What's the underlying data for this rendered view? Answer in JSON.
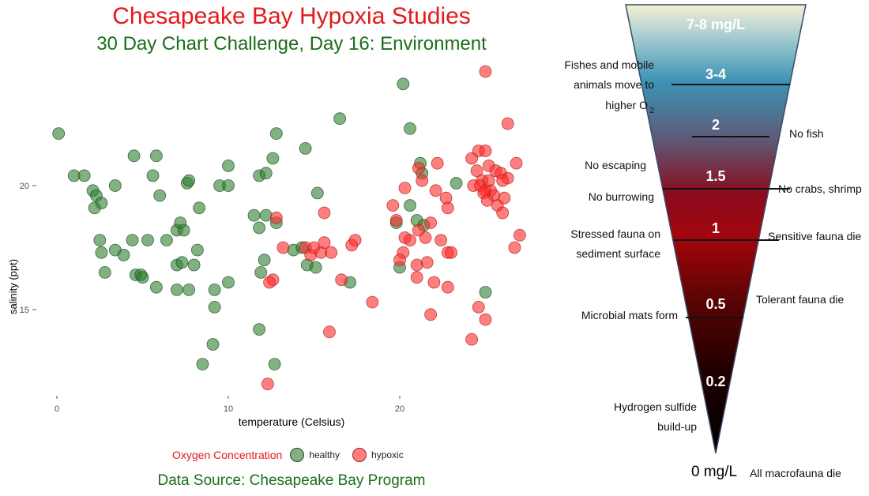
{
  "header": {
    "title": "Chesapeake Bay Hypoxia Studies",
    "subtitle": "30 Day Chart Challenge, Day 16: Environment"
  },
  "footer": {
    "source": "Data Source: Chesapeake Bay Program"
  },
  "colors": {
    "title": "#e31a1c",
    "subtitle": "#1a6e1a",
    "healthy": "#2e7d32",
    "hypoxic": "#ff2a2a"
  },
  "chart_data": {
    "type": "scatter",
    "xlabel": "temperature (Celsius)",
    "ylabel": "salinity (ppt)",
    "xlim": [
      0,
      27.5
    ],
    "ylim": [
      11.5,
      26
    ],
    "xticks": [
      0,
      10,
      20
    ],
    "yticks": [
      15,
      20
    ],
    "grid": false,
    "legend": {
      "title": "Oxygen Concentration",
      "position": "bottom"
    },
    "series": [
      {
        "name": "healthy",
        "color": "#2e7d32",
        "points": [
          [
            0.1,
            22.1
          ],
          [
            1.0,
            20.4
          ],
          [
            1.6,
            20.4
          ],
          [
            2.1,
            19.8
          ],
          [
            2.3,
            19.6
          ],
          [
            2.6,
            19.3
          ],
          [
            2.2,
            19.1
          ],
          [
            3.4,
            20.0
          ],
          [
            2.5,
            17.8
          ],
          [
            2.6,
            17.3
          ],
          [
            2.8,
            16.5
          ],
          [
            3.4,
            17.4
          ],
          [
            3.9,
            17.2
          ],
          [
            4.4,
            17.8
          ],
          [
            4.6,
            16.4
          ],
          [
            4.9,
            16.4
          ],
          [
            5.0,
            16.3
          ],
          [
            5.3,
            17.8
          ],
          [
            5.6,
            20.4
          ],
          [
            5.8,
            21.2
          ],
          [
            5.8,
            15.9
          ],
          [
            4.5,
            21.2
          ],
          [
            6.0,
            19.6
          ],
          [
            6.4,
            17.8
          ],
          [
            7.0,
            18.2
          ],
          [
            7.2,
            18.5
          ],
          [
            7.4,
            18.2
          ],
          [
            7.6,
            20.1
          ],
          [
            7.7,
            20.2
          ],
          [
            7.0,
            16.8
          ],
          [
            7.3,
            16.9
          ],
          [
            7.0,
            15.8
          ],
          [
            7.7,
            15.8
          ],
          [
            8.0,
            16.8
          ],
          [
            8.3,
            19.1
          ],
          [
            8.5,
            12.8
          ],
          [
            8.2,
            17.4
          ],
          [
            9.2,
            15.8
          ],
          [
            9.2,
            15.1
          ],
          [
            9.5,
            20.0
          ],
          [
            10.0,
            20.0
          ],
          [
            10.0,
            16.1
          ],
          [
            10.0,
            20.8
          ],
          [
            9.1,
            13.6
          ],
          [
            11.5,
            18.8
          ],
          [
            11.8,
            18.3
          ],
          [
            12.2,
            18.8
          ],
          [
            11.8,
            14.2
          ],
          [
            11.9,
            16.5
          ],
          [
            12.1,
            17.0
          ],
          [
            11.8,
            20.4
          ],
          [
            12.2,
            20.5
          ],
          [
            12.6,
            21.1
          ],
          [
            12.8,
            22.1
          ],
          [
            12.8,
            18.5
          ],
          [
            12.7,
            12.8
          ],
          [
            13.8,
            17.4
          ],
          [
            14.3,
            17.5
          ],
          [
            14.5,
            21.5
          ],
          [
            14.6,
            16.8
          ],
          [
            15.2,
            19.7
          ],
          [
            15.1,
            16.7
          ],
          [
            16.5,
            22.7
          ],
          [
            17.1,
            16.1
          ],
          [
            20.2,
            24.1
          ],
          [
            20.6,
            22.3
          ],
          [
            20.6,
            19.2
          ],
          [
            19.8,
            18.5
          ],
          [
            20.0,
            16.7
          ],
          [
            21.0,
            18.6
          ],
          [
            21.2,
            20.9
          ],
          [
            21.3,
            20.5
          ],
          [
            21.4,
            18.4
          ],
          [
            23.3,
            20.1
          ],
          [
            25.0,
            15.7
          ]
        ]
      },
      {
        "name": "hypoxic",
        "color": "#ff2a2a",
        "points": [
          [
            25.0,
            24.6
          ],
          [
            26.3,
            22.5
          ],
          [
            24.2,
            21.1
          ],
          [
            24.6,
            21.4
          ],
          [
            25.0,
            21.4
          ],
          [
            24.5,
            20.6
          ],
          [
            24.8,
            20.2
          ],
          [
            25.2,
            20.8
          ],
          [
            25.6,
            20.6
          ],
          [
            25.9,
            20.5
          ],
          [
            24.3,
            20.0
          ],
          [
            24.7,
            20.0
          ],
          [
            25.0,
            19.8
          ],
          [
            25.3,
            19.8
          ],
          [
            25.5,
            19.6
          ],
          [
            25.2,
            20.2
          ],
          [
            24.9,
            19.7
          ],
          [
            25.1,
            19.4
          ],
          [
            25.7,
            19.2
          ],
          [
            26.0,
            18.9
          ],
          [
            26.1,
            19.5
          ],
          [
            26.3,
            20.3
          ],
          [
            26.0,
            20.2
          ],
          [
            26.8,
            20.9
          ],
          [
            27.0,
            18.0
          ],
          [
            26.7,
            17.5
          ],
          [
            24.6,
            15.1
          ],
          [
            25.0,
            14.6
          ],
          [
            24.2,
            13.8
          ],
          [
            22.8,
            19.1
          ],
          [
            22.7,
            19.5
          ],
          [
            22.1,
            19.8
          ],
          [
            22.2,
            20.9
          ],
          [
            21.3,
            20.2
          ],
          [
            21.1,
            20.7
          ],
          [
            21.1,
            18.2
          ],
          [
            21.5,
            17.9
          ],
          [
            21.8,
            18.5
          ],
          [
            22.4,
            17.8
          ],
          [
            22.8,
            17.3
          ],
          [
            23.0,
            17.3
          ],
          [
            20.3,
            17.9
          ],
          [
            20.6,
            17.8
          ],
          [
            20.2,
            17.3
          ],
          [
            20.0,
            17.0
          ],
          [
            21.0,
            16.8
          ],
          [
            21.6,
            16.9
          ],
          [
            22.0,
            16.1
          ],
          [
            22.8,
            15.9
          ],
          [
            21.0,
            16.3
          ],
          [
            20.3,
            19.9
          ],
          [
            19.6,
            19.2
          ],
          [
            19.8,
            18.6
          ],
          [
            18.4,
            15.3
          ],
          [
            21.8,
            14.8
          ],
          [
            17.2,
            17.6
          ],
          [
            17.4,
            17.8
          ],
          [
            16.0,
            17.3
          ],
          [
            15.9,
            14.1
          ],
          [
            14.5,
            17.5
          ],
          [
            14.8,
            17.2
          ],
          [
            15.0,
            17.5
          ],
          [
            15.4,
            17.3
          ],
          [
            15.6,
            17.7
          ],
          [
            15.6,
            18.9
          ],
          [
            13.2,
            17.5
          ],
          [
            12.6,
            16.2
          ],
          [
            12.4,
            16.1
          ],
          [
            12.8,
            18.7
          ],
          [
            12.3,
            12.0
          ],
          [
            16.6,
            16.2
          ]
        ]
      }
    ]
  },
  "diagram": {
    "levels": [
      "7-8 mg/L",
      "3-4",
      "2",
      "1.5",
      "1",
      "0.5",
      "0.2",
      "0 mg/L"
    ],
    "left_labels": {
      "fishes_line1": "Fishes and mobile",
      "fishes_line2": "animals move to",
      "fishes_line3": "higher O",
      "fishes_sub": "2",
      "no_escaping": "No escaping",
      "no_burrowing": "No burrowing",
      "stressed_line1": "Stressed fauna on",
      "stressed_line2": "sediment surface",
      "microbial": "Microbial mats form",
      "h2s_line1": "Hydrogen sulfide",
      "h2s_line2": "build-up"
    },
    "right_labels": {
      "no_fish": "No fish",
      "no_crabs": "No crabs, shrimp",
      "sensitive": "Sensitive fauna die",
      "tolerant": "Tolerant fauna die",
      "all_macro": "All macrofauna die"
    }
  }
}
